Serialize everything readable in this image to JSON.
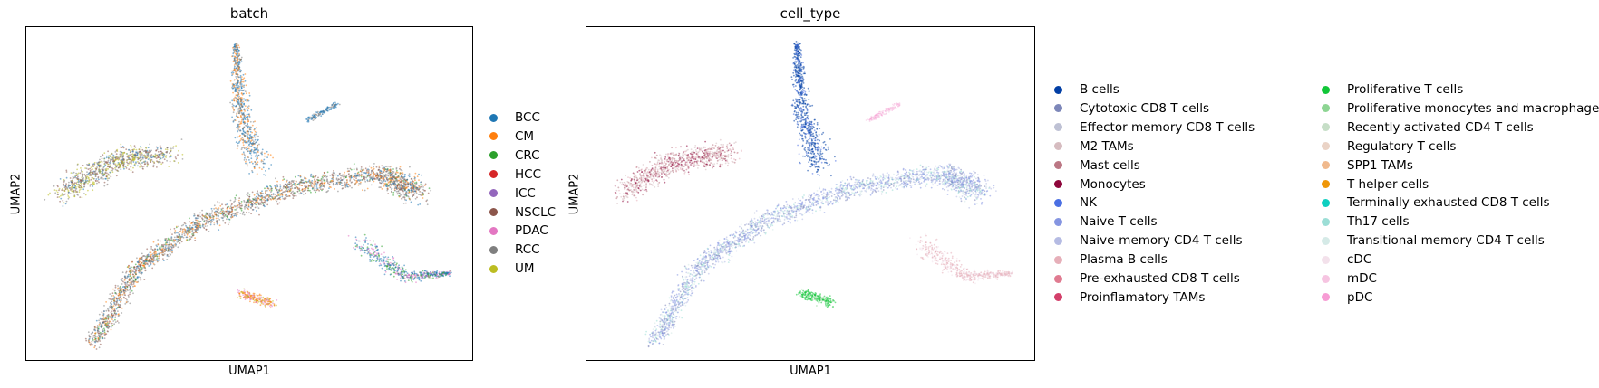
{
  "chart_data": [
    {
      "type": "scatter",
      "title": "batch",
      "xlabel": "UMAP1",
      "ylabel": "UMAP2",
      "legend_placement": "right",
      "legend": [
        {
          "label": "BCC",
          "color": "#1f77b4"
        },
        {
          "label": "CM",
          "color": "#ff7f0e"
        },
        {
          "label": "CRC",
          "color": "#2ca02c"
        },
        {
          "label": "HCC",
          "color": "#d62728"
        },
        {
          "label": "ICC",
          "color": "#9467bd"
        },
        {
          "label": "NSCLC",
          "color": "#8c564b"
        },
        {
          "label": "PDAC",
          "color": "#e377c2"
        },
        {
          "label": "RCC",
          "color": "#7f7f7f"
        },
        {
          "label": "UM",
          "color": "#bcbd22"
        }
      ]
    },
    {
      "type": "scatter",
      "title": "cell_type",
      "xlabel": "UMAP1",
      "ylabel": "UMAP2",
      "legend_placement": "right",
      "legend": [
        {
          "label": "B cells",
          "color": "#023fa5"
        },
        {
          "label": "Cytotoxic CD8 T cells",
          "color": "#7d87b9"
        },
        {
          "label": "Effector memory CD8 T cells",
          "color": "#bec1d4"
        },
        {
          "label": "M2 TAMs",
          "color": "#d6bcc0"
        },
        {
          "label": "Mast cells",
          "color": "#bb7784"
        },
        {
          "label": "Monocytes",
          "color": "#8e063b"
        },
        {
          "label": "NK",
          "color": "#4a6fe3"
        },
        {
          "label": "Naive T cells",
          "color": "#8595e1"
        },
        {
          "label": "Naive-memory CD4 T cells",
          "color": "#b5bbe3"
        },
        {
          "label": "Plasma B cells",
          "color": "#e6afb9"
        },
        {
          "label": "Pre-exhausted CD8 T cells",
          "color": "#e07b91"
        },
        {
          "label": "Proinflamatory TAMs",
          "color": "#d33f6a"
        },
        {
          "label": "Proliferative T cells",
          "color": "#11c638"
        },
        {
          "label": "Proliferative monocytes and macrophages",
          "color": "#8dd593"
        },
        {
          "label": "Recently activated CD4 T cells",
          "color": "#c6dec7"
        },
        {
          "label": "Regulatory T cells",
          "color": "#ead3c6"
        },
        {
          "label": "SPP1 TAMs",
          "color": "#f0b98d"
        },
        {
          "label": "T helper cells",
          "color": "#ef9708"
        },
        {
          "label": "Terminally exhausted CD8 T cells",
          "color": "#0fcfc0"
        },
        {
          "label": "Th17 cells",
          "color": "#9cded6"
        },
        {
          "label": "Transitional memory CD4 T cells",
          "color": "#d5eae7"
        },
        {
          "label": "cDC",
          "color": "#f3e1eb"
        },
        {
          "label": "mDC",
          "color": "#f6c4e1"
        },
        {
          "label": "pDC",
          "color": "#f79cd4"
        }
      ]
    }
  ]
}
